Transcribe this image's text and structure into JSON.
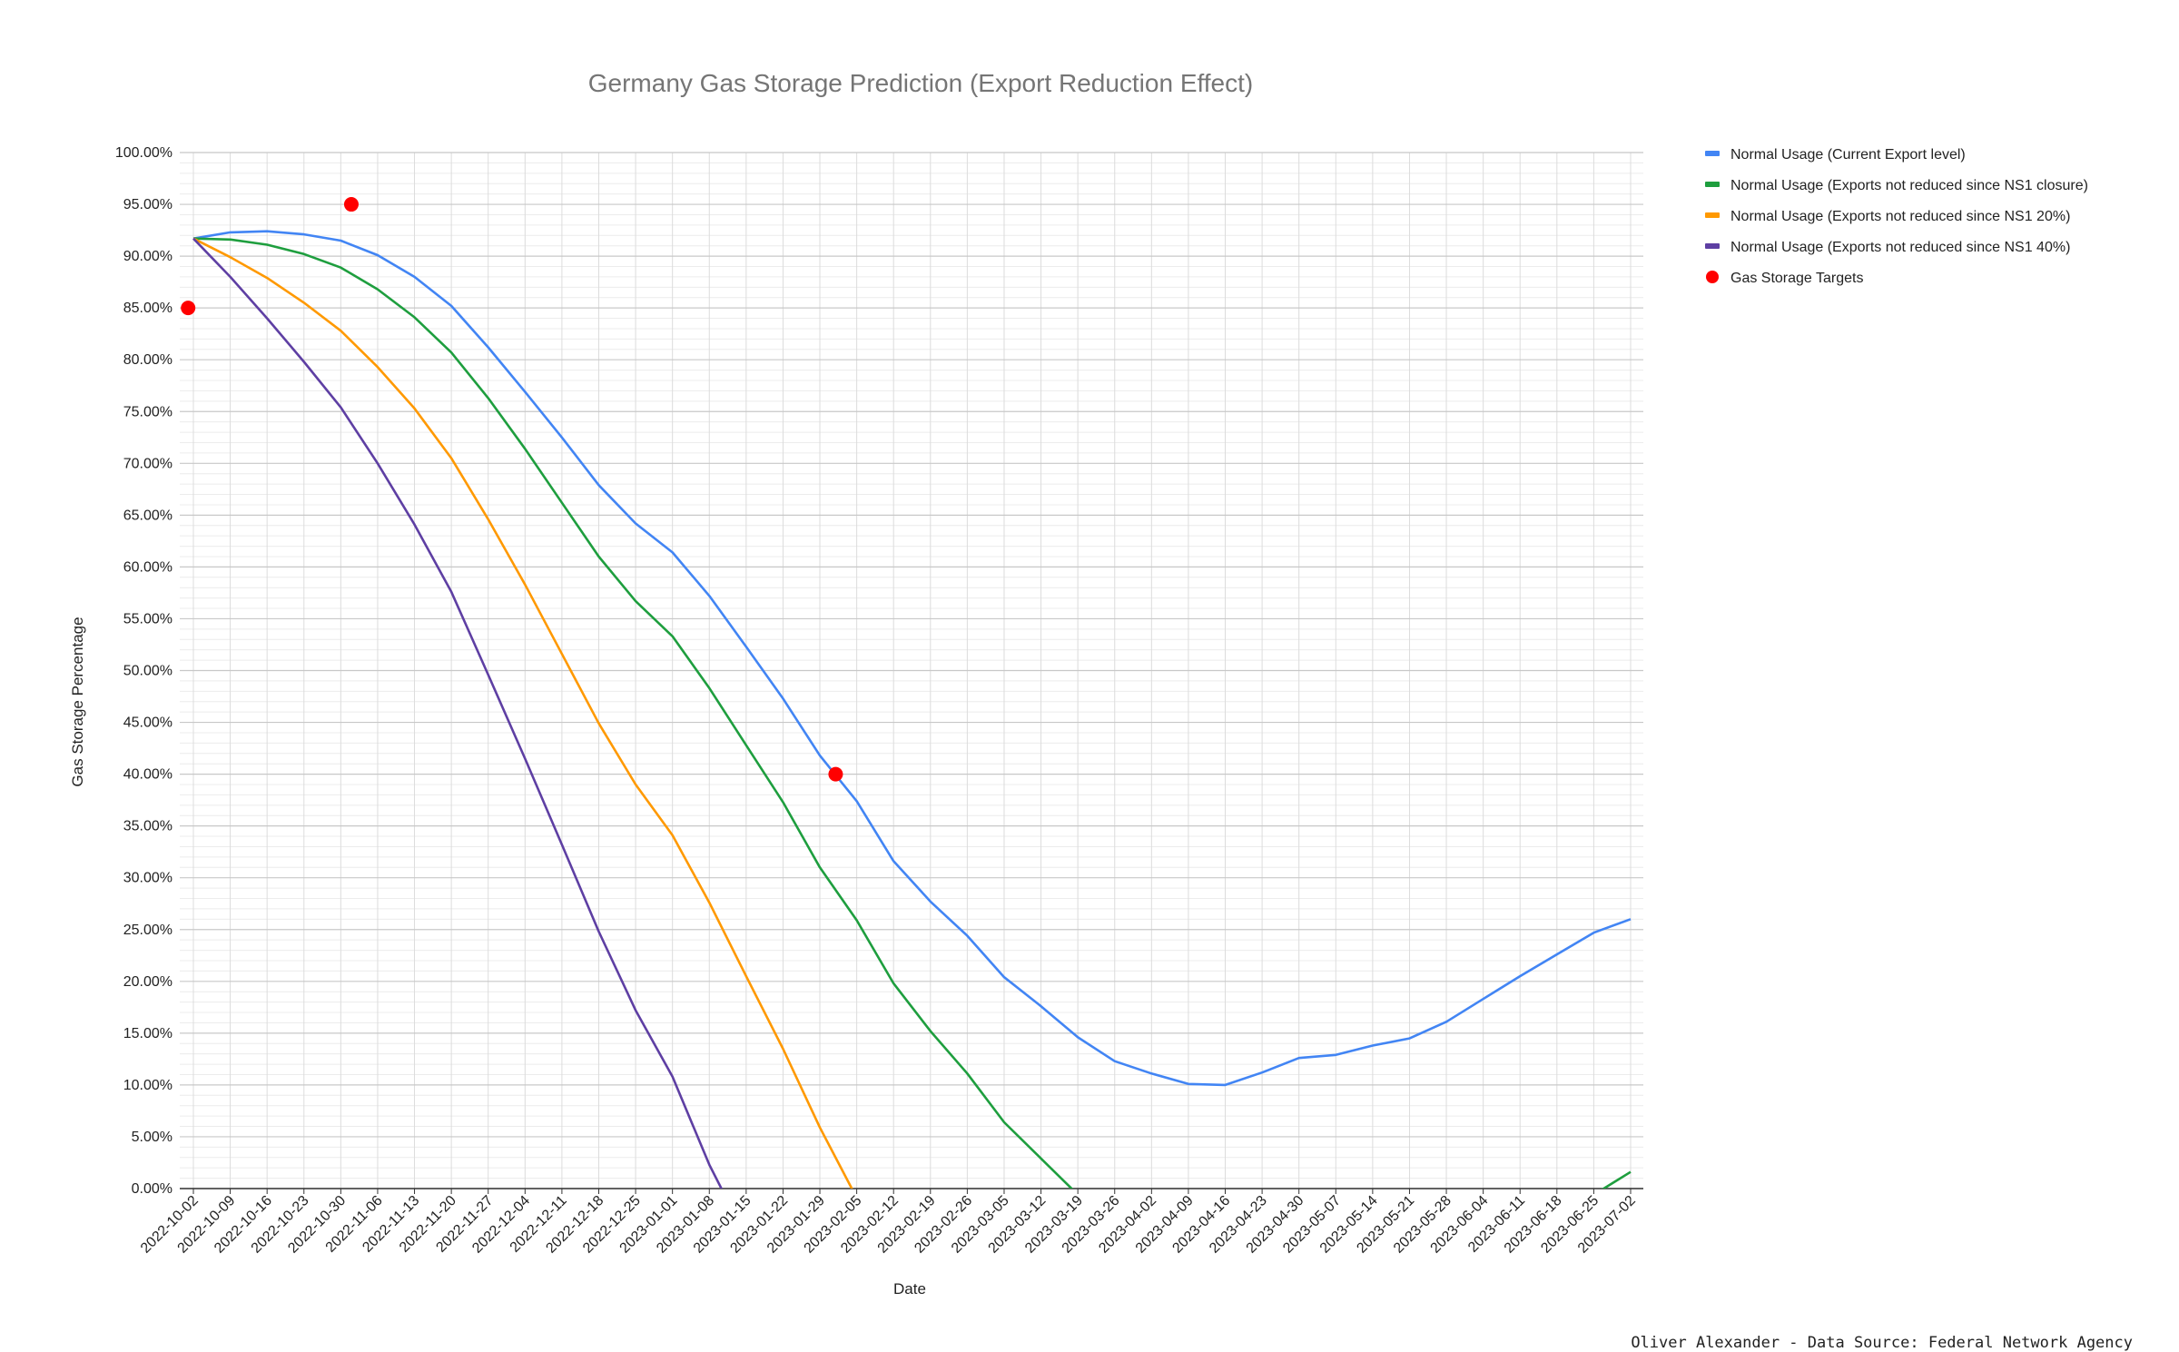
{
  "chart_data": {
    "type": "line",
    "title": "Germany Gas Storage Prediction (Export Reduction Effect)",
    "xlabel": "Date",
    "ylabel": "Gas Storage Percentage",
    "ylim": [
      0,
      100
    ],
    "y_ticks": [
      0,
      5,
      10,
      15,
      20,
      25,
      30,
      35,
      40,
      45,
      50,
      55,
      60,
      65,
      70,
      75,
      80,
      85,
      90,
      95,
      100
    ],
    "y_tick_labels": [
      "0.00%",
      "5.00%",
      "10.00%",
      "15.00%",
      "20.00%",
      "25.00%",
      "30.00%",
      "35.00%",
      "40.00%",
      "45.00%",
      "50.00%",
      "55.00%",
      "60.00%",
      "65.00%",
      "70.00%",
      "75.00%",
      "80.00%",
      "85.00%",
      "90.00%",
      "95.00%",
      "100.00%"
    ],
    "grid": true,
    "legend_position": "right",
    "categories": [
      "2022-10-02",
      "2022-10-09",
      "2022-10-16",
      "2022-10-23",
      "2022-10-30",
      "2022-11-06",
      "2022-11-13",
      "2022-11-20",
      "2022-11-27",
      "2022-12-04",
      "2022-12-11",
      "2022-12-18",
      "2022-12-25",
      "2023-01-01",
      "2023-01-08",
      "2023-01-15",
      "2023-01-22",
      "2023-01-29",
      "2023-02-05",
      "2023-02-12",
      "2023-02-19",
      "2023-02-26",
      "2023-03-05",
      "2023-03-12",
      "2023-03-19",
      "2023-03-26",
      "2023-04-02",
      "2023-04-09",
      "2023-04-16",
      "2023-04-23",
      "2023-04-30",
      "2023-05-07",
      "2023-05-14",
      "2023-05-21",
      "2023-05-28",
      "2023-06-04",
      "2023-06-11",
      "2023-06-18",
      "2023-06-25",
      "2023-07-02"
    ],
    "series": [
      {
        "name": "Normal Usage (Current Export level)",
        "color": "#4285f4",
        "values": [
          91.7,
          92.3,
          92.4,
          92.1,
          91.5,
          90.1,
          88.0,
          85.2,
          81.2,
          76.9,
          72.5,
          67.9,
          64.2,
          61.4,
          57.2,
          52.3,
          47.3,
          41.8,
          37.4,
          31.6,
          27.7,
          24.4,
          20.4,
          17.6,
          14.6,
          12.3,
          11.1,
          10.1,
          10.0,
          11.2,
          12.6,
          12.9,
          13.8,
          14.5,
          16.1,
          18.3,
          20.5,
          22.6,
          24.7,
          26.0
        ]
      },
      {
        "name": "Normal Usage (Exports not reduced since NS1 closure)",
        "color": "#1e9e3e",
        "values": [
          91.7,
          91.6,
          91.1,
          90.2,
          88.9,
          86.8,
          84.1,
          80.7,
          76.3,
          71.4,
          66.2,
          61.0,
          56.7,
          53.3,
          48.3,
          42.8,
          37.3,
          31.0,
          25.9,
          19.8,
          15.2,
          11.1,
          6.4,
          2.9,
          -0.6,
          null,
          null,
          null,
          null,
          null,
          null,
          null,
          null,
          null,
          null,
          null,
          null,
          -3.2,
          -0.6,
          1.6
        ]
      },
      {
        "name": "Normal Usage (Exports not reduced since NS1 20%)",
        "color": "#ff9900",
        "values": [
          91.7,
          89.9,
          87.9,
          85.5,
          82.8,
          79.3,
          75.3,
          70.5,
          64.6,
          58.3,
          51.6,
          44.9,
          39.0,
          34.1,
          27.6,
          20.5,
          13.5,
          5.9,
          -0.9,
          null,
          null,
          null,
          null,
          null,
          null,
          null,
          null,
          null,
          null,
          null,
          null,
          null,
          null,
          null,
          null,
          null,
          null,
          null,
          null,
          null
        ]
      },
      {
        "name": "Normal Usage (Exports not reduced since NS1 40%)",
        "color": "#5e3fa3",
        "values": [
          91.7,
          88.0,
          84.0,
          79.8,
          75.4,
          70.0,
          64.1,
          57.6,
          49.6,
          41.5,
          33.2,
          24.8,
          17.2,
          10.8,
          2.3,
          -4.7,
          null,
          null,
          null,
          null,
          null,
          null,
          null,
          null,
          null,
          null,
          null,
          null,
          null,
          null,
          null,
          null,
          null,
          null,
          null,
          null,
          null,
          null,
          null,
          null
        ]
      },
      {
        "name": "Gas Storage Targets",
        "color": "#ff0000",
        "type": "scatter",
        "points": [
          {
            "x": "2022-10-01",
            "y": 85
          },
          {
            "x": "2022-11-01",
            "y": 95
          },
          {
            "x": "2023-02-01",
            "y": 40
          }
        ]
      }
    ]
  },
  "credit": "Oliver Alexander - Data Source: Federal Network Agency"
}
